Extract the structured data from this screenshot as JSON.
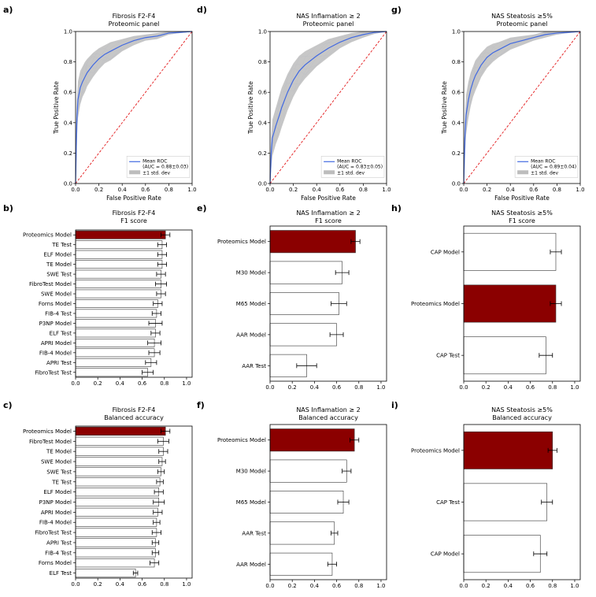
{
  "chart_data": [
    {
      "panel": "a)",
      "type": "line",
      "title": [
        "Fibrosis F2-F4",
        "Proteomic panel"
      ],
      "xlabel": "False Positive Rate",
      "ylabel": "True Positive Rate",
      "xlim": [
        0,
        1
      ],
      "ylim": [
        0,
        1
      ],
      "ticks": [
        "0.0",
        "0.2",
        "0.4",
        "0.6",
        "0.8",
        "1.0"
      ],
      "legend": [
        "Mean ROC\n(AUC = 0.88±0.03)",
        "±1 std. dev"
      ],
      "legend_position": "lower-right",
      "series": [
        {
          "name": "Mean ROC\n(AUC = 0.88±0.03)",
          "x": [
            0,
            0.01,
            0.02,
            0.04,
            0.06,
            0.08,
            0.1,
            0.15,
            0.2,
            0.25,
            0.3,
            0.4,
            0.5,
            0.6,
            0.7,
            0.8,
            0.9,
            1.0
          ],
          "y": [
            0,
            0.4,
            0.55,
            0.63,
            0.67,
            0.7,
            0.73,
            0.78,
            0.82,
            0.85,
            0.87,
            0.91,
            0.94,
            0.96,
            0.97,
            0.99,
            0.995,
            1.0
          ],
          "std": [
            0,
            0.12,
            0.12,
            0.11,
            0.1,
            0.1,
            0.09,
            0.08,
            0.07,
            0.06,
            0.06,
            0.04,
            0.03,
            0.02,
            0.02,
            0.01,
            0.005,
            0
          ]
        }
      ],
      "chance_line": true,
      "colors": {
        "mean": "#4169e1",
        "band": "#bdbdbd",
        "chance": "#e31a1c"
      }
    },
    {
      "panel": "d)",
      "type": "line",
      "title": [
        "NAS Inflamation  ≥ 2",
        "Proteomic panel"
      ],
      "xlabel": "False Positive Rate",
      "ylabel": "True Positive Rate",
      "xlim": [
        0,
        1
      ],
      "ylim": [
        0,
        1
      ],
      "ticks": [
        "0.0",
        "0.2",
        "0.4",
        "0.6",
        "0.8",
        "1.0"
      ],
      "legend": [
        "Mean ROC\n(AUC = 0.83±0.05)",
        "±1 std. dev"
      ],
      "legend_position": "lower-right",
      "series": [
        {
          "name": "Mean ROC\n(AUC = 0.83±0.05)",
          "x": [
            0,
            0.01,
            0.02,
            0.05,
            0.08,
            0.1,
            0.15,
            0.2,
            0.25,
            0.3,
            0.4,
            0.5,
            0.6,
            0.7,
            0.8,
            0.9,
            1.0
          ],
          "y": [
            0,
            0.2,
            0.3,
            0.38,
            0.45,
            0.5,
            0.6,
            0.68,
            0.74,
            0.78,
            0.84,
            0.89,
            0.93,
            0.96,
            0.98,
            0.995,
            1.0
          ],
          "std": [
            0,
            0.1,
            0.12,
            0.12,
            0.13,
            0.13,
            0.12,
            0.11,
            0.1,
            0.09,
            0.07,
            0.06,
            0.04,
            0.03,
            0.02,
            0.01,
            0
          ]
        }
      ],
      "chance_line": true,
      "colors": {
        "mean": "#4169e1",
        "band": "#bdbdbd",
        "chance": "#e31a1c"
      }
    },
    {
      "panel": "g)",
      "type": "line",
      "title": [
        "NAS Steatosis  ≥5%",
        "Proteomic panel"
      ],
      "xlabel": "False Positive Rate",
      "ylabel": "True Positive Rate",
      "xlim": [
        0,
        1
      ],
      "ylim": [
        0,
        1
      ],
      "ticks": [
        "0.0",
        "0.2",
        "0.4",
        "0.6",
        "0.8",
        "1.0"
      ],
      "legend": [
        "Mean ROC\n(AUC = 0.89±0.04)",
        "±1 std. dev"
      ],
      "legend_position": "lower-right",
      "series": [
        {
          "name": "Mean ROC\n(AUC = 0.89±0.04)",
          "x": [
            0,
            0.01,
            0.02,
            0.04,
            0.06,
            0.08,
            0.1,
            0.15,
            0.2,
            0.25,
            0.3,
            0.4,
            0.5,
            0.6,
            0.7,
            0.8,
            0.9,
            1.0
          ],
          "y": [
            0,
            0.3,
            0.45,
            0.55,
            0.62,
            0.67,
            0.71,
            0.78,
            0.83,
            0.86,
            0.88,
            0.92,
            0.94,
            0.96,
            0.98,
            0.99,
            0.995,
            1.0
          ],
          "std": [
            0,
            0.12,
            0.13,
            0.12,
            0.11,
            0.1,
            0.1,
            0.08,
            0.07,
            0.06,
            0.05,
            0.04,
            0.03,
            0.02,
            0.02,
            0.01,
            0.005,
            0
          ]
        }
      ],
      "chance_line": true,
      "colors": {
        "mean": "#4169e1",
        "band": "#bdbdbd",
        "chance": "#e31a1c"
      }
    },
    {
      "panel": "b)",
      "type": "bar",
      "orientation": "horizontal",
      "title": [
        "Fibrosis F2-F4",
        "F1 score"
      ],
      "xlim": [
        0,
        1.05
      ],
      "ticks": [
        "0.0",
        "0.2",
        "0.4",
        "0.6",
        "0.8",
        "1.0"
      ],
      "categories": [
        "Proteomics Model",
        "TE Test",
        "ELF Model",
        "TE Model",
        "SWE Test",
        "FibroTest Model",
        "SWE Model",
        "Forns Model",
        "FIB-4 Test",
        "P3NP Model",
        "ELF Test",
        "APRI Model",
        "FIB-4 Model",
        "APRI Test",
        "FibroTest Test"
      ],
      "values": [
        0.81,
        0.78,
        0.78,
        0.78,
        0.77,
        0.77,
        0.77,
        0.74,
        0.73,
        0.72,
        0.72,
        0.71,
        0.71,
        0.68,
        0.65
      ],
      "errors": [
        0.04,
        0.04,
        0.04,
        0.04,
        0.04,
        0.05,
        0.04,
        0.04,
        0.04,
        0.06,
        0.04,
        0.06,
        0.05,
        0.05,
        0.05
      ],
      "highlight_index": 0,
      "colors": {
        "highlight": "#8b0000",
        "bar": "#ffffff"
      }
    },
    {
      "panel": "e)",
      "type": "bar",
      "orientation": "horizontal",
      "title": [
        "NAS Inflamation  ≥ 2",
        "F1 score"
      ],
      "xlim": [
        0,
        1.05
      ],
      "ticks": [
        "0.0",
        "0.2",
        "0.4",
        "0.6",
        "0.8",
        "1.0"
      ],
      "categories": [
        "Proteomics Model",
        "M30 Model",
        "M65 Model",
        "AAR Model",
        "AAR Test"
      ],
      "values": [
        0.77,
        0.65,
        0.62,
        0.6,
        0.33
      ],
      "errors": [
        0.04,
        0.06,
        0.07,
        0.06,
        0.09
      ],
      "highlight_index": 0,
      "colors": {
        "highlight": "#8b0000",
        "bar": "#ffffff"
      }
    },
    {
      "panel": "h)",
      "type": "bar",
      "orientation": "horizontal",
      "title": [
        "NAS Steatosis  ≥5%",
        "F1 score"
      ],
      "xlim": [
        0,
        1.05
      ],
      "ticks": [
        "0.0",
        "0.2",
        "0.4",
        "0.6",
        "0.8",
        "1.0"
      ],
      "categories": [
        "CAP Model",
        "Proteomics Model",
        "CAP Test"
      ],
      "values": [
        0.83,
        0.83,
        0.74
      ],
      "errors": [
        0.05,
        0.05,
        0.06
      ],
      "highlight_index": 1,
      "colors": {
        "highlight": "#8b0000",
        "bar": "#ffffff"
      }
    },
    {
      "panel": "c)",
      "type": "bar",
      "orientation": "horizontal",
      "title": [
        "Fibrosis F2-F4",
        "Balanced accuracy"
      ],
      "xlim": [
        0,
        1.05
      ],
      "ticks": [
        "0.0",
        "0.2",
        "0.4",
        "0.6",
        "0.8",
        "1.0"
      ],
      "categories": [
        "Proteomics Model",
        "FibroTest Model",
        "TE Model",
        "SWE Model",
        "SWE Test",
        "TE Test",
        "ELF Model",
        "P3NP Model",
        "APRI Model",
        "FIB-4 Model",
        "FibroTest Test",
        "APRI Test",
        "FIB-4 Test",
        "Forns Model",
        "ELF Test"
      ],
      "values": [
        0.81,
        0.79,
        0.79,
        0.78,
        0.77,
        0.76,
        0.75,
        0.75,
        0.74,
        0.73,
        0.73,
        0.72,
        0.72,
        0.71,
        0.54
      ],
      "errors": [
        0.04,
        0.05,
        0.04,
        0.03,
        0.03,
        0.03,
        0.04,
        0.05,
        0.04,
        0.03,
        0.04,
        0.03,
        0.03,
        0.04,
        0.02
      ],
      "highlight_index": 0,
      "colors": {
        "highlight": "#8b0000",
        "bar": "#ffffff"
      }
    },
    {
      "panel": "f)",
      "type": "bar",
      "orientation": "horizontal",
      "title": [
        "NAS Inflamation  ≥ 2",
        "Balanced accuracy"
      ],
      "xlim": [
        0,
        1.05
      ],
      "ticks": [
        "0.0",
        "0.2",
        "0.4",
        "0.6",
        "0.8",
        "1.0"
      ],
      "categories": [
        "Proteomics Model",
        "M30 Model",
        "M65 Model",
        "AAR Test",
        "AAR Model"
      ],
      "values": [
        0.76,
        0.69,
        0.66,
        0.58,
        0.56
      ],
      "errors": [
        0.04,
        0.04,
        0.05,
        0.03,
        0.04
      ],
      "highlight_index": 0,
      "colors": {
        "highlight": "#8b0000",
        "bar": "#ffffff"
      }
    },
    {
      "panel": "i)",
      "type": "bar",
      "orientation": "horizontal",
      "title": [
        "NAS Steatosis  ≥5%",
        "Balanced accuracy"
      ],
      "xlim": [
        0,
        1.05
      ],
      "ticks": [
        "0.0",
        "0.2",
        "0.4",
        "0.6",
        "0.8",
        "1.0"
      ],
      "categories": [
        "Proteomics Model",
        "CAP Test",
        "CAP Model"
      ],
      "values": [
        0.8,
        0.75,
        0.69
      ],
      "errors": [
        0.04,
        0.05,
        0.06
      ],
      "highlight_index": 0,
      "colors": {
        "highlight": "#8b0000",
        "bar": "#ffffff"
      }
    }
  ]
}
